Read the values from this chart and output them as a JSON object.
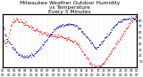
{
  "title": "Milwaukee Weather Outdoor Humidity\nvs Temperature\nEvery 5 Minutes",
  "title_fontsize": 4.2,
  "background_color": "#ffffff",
  "grid_color": "#bbbbbb",
  "red_color": "#ff0000",
  "blue_color": "#0000cc",
  "ylim_left": [
    25,
    100
  ],
  "ylim_right": [
    0,
    90
  ],
  "xlim": [
    0,
    288
  ],
  "tick_fontsize": 2.5,
  "humidity_data": [
    60,
    62,
    63,
    61,
    60,
    59,
    58,
    57,
    58,
    60,
    65,
    68,
    72,
    75,
    78,
    80,
    82,
    84,
    85,
    86,
    87,
    88,
    89,
    90,
    91,
    91,
    92,
    93,
    93,
    93,
    93,
    92,
    92,
    92,
    91,
    91,
    90,
    90,
    90,
    89,
    89,
    89,
    88,
    88,
    87,
    87,
    86,
    86,
    85,
    85,
    85,
    84,
    84,
    84,
    83,
    83,
    83,
    82,
    82,
    82,
    81,
    81,
    81,
    80,
    80,
    79,
    79,
    79,
    78,
    78,
    77,
    77,
    77,
    76,
    76,
    76,
    75,
    75,
    75,
    74,
    74,
    74,
    74,
    73,
    73,
    73,
    73,
    72,
    72,
    72,
    72,
    72,
    71,
    71,
    71,
    71,
    71,
    71,
    70,
    70,
    70,
    70,
    70,
    70,
    70,
    69,
    69,
    69,
    69,
    69,
    69,
    69,
    69,
    68,
    68,
    68,
    68,
    68,
    68,
    68,
    68,
    68,
    68,
    68,
    68,
    68,
    67,
    67,
    67,
    67,
    67,
    67,
    67,
    67,
    67,
    66,
    66,
    66,
    66,
    66,
    66,
    65,
    65,
    65,
    64,
    64,
    64,
    63,
    63,
    63,
    62,
    62,
    61,
    61,
    60,
    60,
    59,
    59,
    58,
    57,
    57,
    56,
    55,
    55,
    54,
    53,
    52,
    51,
    50,
    49,
    48,
    47,
    46,
    45,
    44,
    43,
    42,
    41,
    40,
    39,
    38,
    37,
    36,
    35,
    34,
    33,
    32,
    31,
    30,
    29,
    28,
    27,
    27,
    26,
    26,
    26,
    25,
    25,
    25,
    25,
    25,
    25,
    25,
    25,
    25,
    26,
    26,
    26,
    27,
    27,
    28,
    28,
    29,
    29,
    30,
    30,
    31,
    31,
    32,
    33,
    34,
    35,
    36,
    37,
    38,
    39,
    40,
    41,
    42,
    43,
    44,
    45,
    46,
    47,
    48,
    49,
    50,
    51,
    52,
    53,
    54,
    55,
    56,
    57,
    58,
    59,
    60,
    61,
    62,
    63,
    64,
    65,
    66,
    67,
    68,
    69,
    70,
    71,
    72,
    73,
    74,
    75,
    76,
    77,
    78,
    79,
    80,
    81,
    82,
    83,
    84,
    85,
    86,
    87,
    88,
    89,
    90,
    91,
    92,
    93,
    94,
    95,
    95,
    95,
    96,
    96,
    96,
    97,
    97
  ],
  "temp_data": [
    70,
    68,
    65,
    62,
    58,
    55,
    52,
    50,
    48,
    46,
    45,
    44,
    43,
    42,
    41,
    40,
    39,
    38,
    37,
    36,
    35,
    34,
    33,
    32,
    31,
    30,
    29,
    28,
    27,
    26,
    25,
    24,
    23,
    22,
    22,
    21,
    21,
    20,
    20,
    20,
    19,
    19,
    19,
    19,
    18,
    18,
    18,
    18,
    18,
    18,
    18,
    18,
    18,
    18,
    18,
    19,
    19,
    19,
    19,
    19,
    19,
    20,
    20,
    20,
    21,
    21,
    22,
    22,
    23,
    23,
    24,
    25,
    25,
    26,
    27,
    28,
    29,
    30,
    31,
    32,
    33,
    34,
    35,
    36,
    37,
    38,
    39,
    40,
    41,
    42,
    43,
    44,
    45,
    46,
    47,
    48,
    49,
    50,
    51,
    52,
    53,
    54,
    55,
    56,
    57,
    58,
    59,
    60,
    61,
    62,
    63,
    64,
    65,
    65,
    66,
    66,
    67,
    67,
    68,
    68,
    69,
    69,
    70,
    70,
    70,
    71,
    71,
    71,
    72,
    72,
    72,
    72,
    72,
    72,
    73,
    73,
    73,
    73,
    73,
    73,
    73,
    73,
    73,
    73,
    73,
    73,
    73,
    73,
    72,
    72,
    72,
    72,
    71,
    71,
    71,
    70,
    70,
    70,
    69,
    69,
    68,
    68,
    67,
    67,
    66,
    65,
    65,
    64,
    63,
    62,
    61,
    60,
    59,
    58,
    57,
    56,
    55,
    54,
    53,
    52,
    51,
    50,
    49,
    48,
    47,
    46,
    45,
    44,
    43,
    42,
    41,
    40,
    39,
    38,
    37,
    36,
    35,
    34,
    33,
    32,
    32,
    32,
    33,
    33,
    34,
    35,
    36,
    37,
    38,
    39,
    40,
    41,
    42,
    43,
    44,
    45,
    46,
    47,
    48,
    49,
    50,
    51,
    52,
    53,
    54,
    55,
    56,
    57,
    58,
    59,
    60,
    61,
    62,
    63,
    64,
    65,
    66,
    67,
    68,
    69,
    70,
    71,
    72,
    73,
    74,
    75,
    75,
    76,
    76,
    77,
    77,
    78,
    78,
    79,
    79,
    79,
    80,
    80,
    80,
    81,
    81,
    81,
    81,
    82,
    82,
    82,
    82,
    82,
    83,
    83,
    83,
    83,
    83,
    83,
    83,
    83,
    83,
    83,
    83,
    83,
    82,
    82,
    82,
    81,
    81,
    80,
    79,
    78,
    77
  ],
  "yticks_right": [
    10,
    20,
    30,
    40,
    50,
    60,
    70,
    80
  ],
  "ytick_labels_right": [
    "10",
    "20",
    "30",
    "40",
    "50",
    "60",
    "70",
    "80"
  ]
}
